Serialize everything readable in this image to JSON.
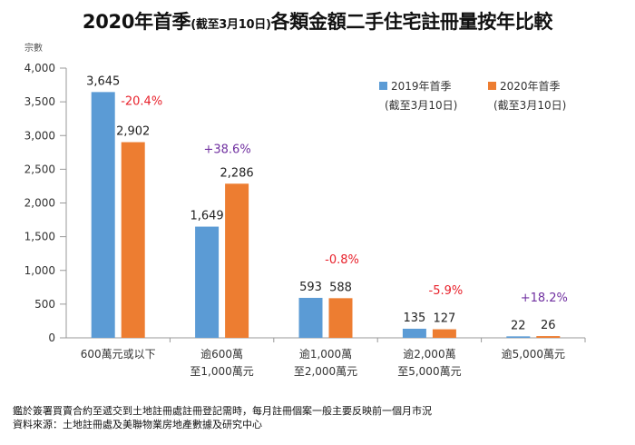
{
  "title": {
    "main_pre": "2020年首季",
    "main_sub": "(截至3月10日)",
    "main_post": "各類金額二手住宅註冊量按年比較"
  },
  "chart_data": {
    "type": "bar",
    "ylabel": "宗數",
    "ylim": [
      0,
      4000
    ],
    "yticks": [
      "0",
      "500",
      "1,000",
      "1,500",
      "2,000",
      "2,500",
      "3,000",
      "3,500",
      "4,000"
    ],
    "ytick_values": [
      0,
      500,
      1000,
      1500,
      2000,
      2500,
      3000,
      3500,
      4000
    ],
    "categories": [
      {
        "line1": "600萬元或以下",
        "line2": ""
      },
      {
        "line1": "逾600萬",
        "line2": "至1,000萬元"
      },
      {
        "line1": "逾1,000萬",
        "line2": "至2,000萬元"
      },
      {
        "line1": "逾2,000萬",
        "line2": "至5,000萬元"
      },
      {
        "line1": "逾5,000萬元",
        "line2": ""
      }
    ],
    "series": [
      {
        "name": "2019年首季",
        "name_sub": "(截至3月10日)",
        "color": "#5B9BD5",
        "values": [
          3645,
          1649,
          593,
          135,
          22
        ],
        "labels": [
          "3,645",
          "1,649",
          "593",
          "135",
          "22"
        ]
      },
      {
        "name": "2020年首季",
        "name_sub": "(截至3月10日)",
        "color": "#ED7D31",
        "values": [
          2902,
          2286,
          588,
          127,
          26
        ],
        "labels": [
          "2,902",
          "2,286",
          "588",
          "127",
          "26"
        ]
      }
    ],
    "changes": [
      {
        "text": "-20.4%",
        "color": "#E8212B"
      },
      {
        "text": "+38.6%",
        "color": "#7030A0"
      },
      {
        "text": "-0.8%",
        "color": "#E8212B"
      },
      {
        "text": "-5.9%",
        "color": "#E8212B"
      },
      {
        "text": "+18.2%",
        "color": "#7030A0"
      }
    ],
    "legend_position": "top-right",
    "grid": false
  },
  "footnotes": {
    "line1": "鑑於簽署買賣合約至遞交到土地註冊處註冊登記需時，每月註冊個案一般主要反映前一個月市況",
    "line2": "資料來源：土地註冊處及美聯物業房地產數據及研究中心"
  }
}
